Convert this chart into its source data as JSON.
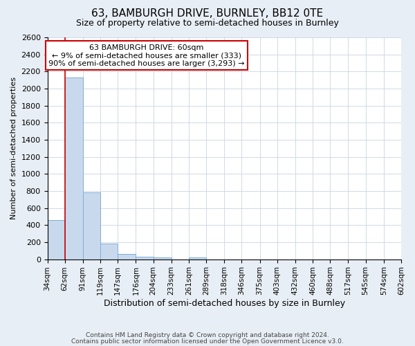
{
  "title": "63, BAMBURGH DRIVE, BURNLEY, BB12 0TE",
  "subtitle": "Size of property relative to semi-detached houses in Burnley",
  "xlabel": "Distribution of semi-detached houses by size in Burnley",
  "ylabel": "Number of semi-detached properties",
  "bin_labels": [
    "34sqm",
    "62sqm",
    "91sqm",
    "119sqm",
    "147sqm",
    "176sqm",
    "204sqm",
    "233sqm",
    "261sqm",
    "289sqm",
    "318sqm",
    "346sqm",
    "375sqm",
    "403sqm",
    "432sqm",
    "460sqm",
    "488sqm",
    "517sqm",
    "545sqm",
    "574sqm",
    "602sqm"
  ],
  "bin_edges": [
    34,
    62,
    91,
    119,
    147,
    176,
    204,
    233,
    261,
    289,
    318,
    346,
    375,
    403,
    432,
    460,
    488,
    517,
    545,
    574,
    602
  ],
  "bar_heights": [
    460,
    2130,
    780,
    185,
    58,
    32,
    20,
    0,
    22,
    0,
    0,
    0,
    0,
    0,
    0,
    0,
    0,
    0,
    0,
    0
  ],
  "bar_color": "#c9d9ed",
  "bar_edge_color": "#7baed4",
  "red_line_x": 62,
  "annotation_title": "63 BAMBURGH DRIVE: 60sqm",
  "annotation_line1": "← 9% of semi-detached houses are smaller (333)",
  "annotation_line2": "90% of semi-detached houses are larger (3,293) →",
  "annotation_box_color": "#ffffff",
  "annotation_box_edge_color": "#cc0000",
  "red_line_color": "#cc0000",
  "ylim": [
    0,
    2600
  ],
  "yticks": [
    0,
    200,
    400,
    600,
    800,
    1000,
    1200,
    1400,
    1600,
    1800,
    2000,
    2200,
    2400,
    2600
  ],
  "grid_color": "#c8d4e0",
  "plot_bg_color": "#ffffff",
  "fig_bg_color": "#e8eef5",
  "footer1": "Contains HM Land Registry data © Crown copyright and database right 2024.",
  "footer2": "Contains public sector information licensed under the Open Government Licence v3.0."
}
